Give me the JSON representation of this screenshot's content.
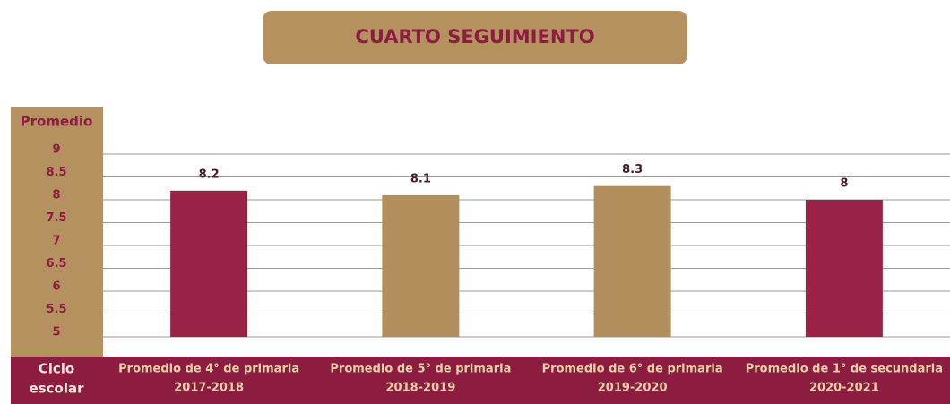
{
  "chart_data": {
    "type": "bar",
    "title": "CUARTO SEGUIMIENTO",
    "y_label": "Promedio",
    "x_label": [
      "Ciclo",
      "escolar"
    ],
    "categories": [
      [
        "Promedio de 4° de primaria",
        "2017-2018"
      ],
      [
        "Promedio de 5° de primaria",
        "2018-2019"
      ],
      [
        "Promedio de 6° de primaria",
        "2019-2020"
      ],
      [
        "Promedio de 1° de secundaria",
        "2020-2021"
      ]
    ],
    "values": [
      8.2,
      8.1,
      8.3,
      8
    ],
    "colors": [
      "#9b2247",
      "#b38e5d",
      "#b38e5d",
      "#9b2247"
    ],
    "ylim": [
      5,
      9
    ],
    "yticks": [
      9,
      8.5,
      8,
      7.5,
      7,
      6.5,
      6,
      5.5,
      5
    ],
    "grid": true
  }
}
